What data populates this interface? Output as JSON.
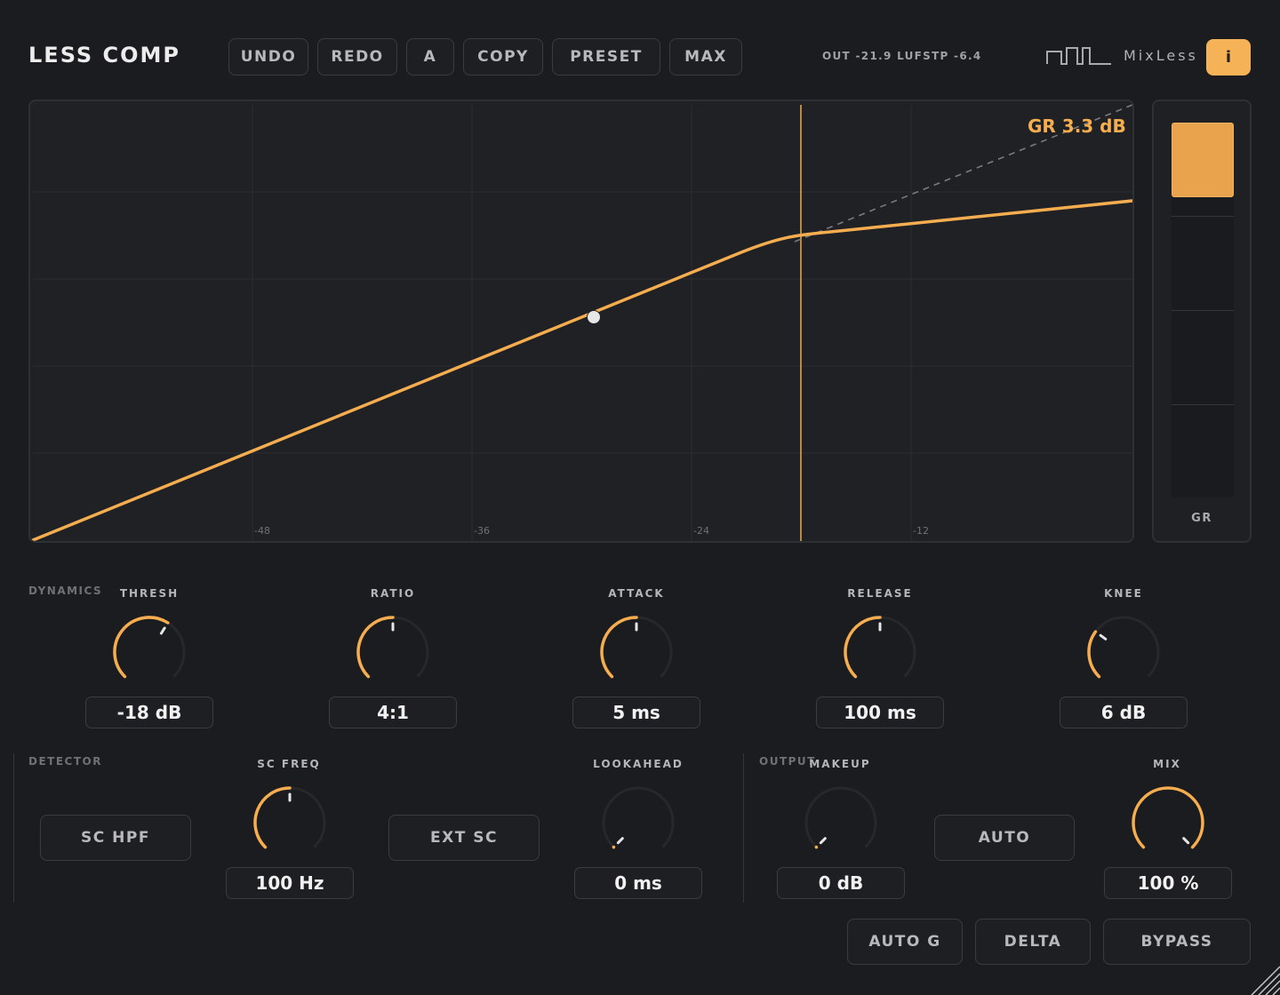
{
  "app": {
    "title": "LESS COMP"
  },
  "toolbar": {
    "undo": "UNDO",
    "redo": "REDO",
    "ab": "A",
    "copy": "COPY",
    "preset": "PRESET",
    "max": "MAX"
  },
  "meters": {
    "out": "OUT -21.9 LUFS",
    "tp": "TP -6.4"
  },
  "brand": {
    "name": "MixLess",
    "info": "i"
  },
  "graph": {
    "gr_readout": "GR  3.3 dB",
    "x_ticks": [
      "-48",
      "-36",
      "-24",
      "-12"
    ],
    "curve_color": "#f5ad4f"
  },
  "gr_meter": {
    "label": "GR",
    "fill_fraction": 0.2
  },
  "dynamics": {
    "section": "DYNAMICS",
    "thresh": {
      "label": "THRESH",
      "value": "-18 dB",
      "fraction": 0.62
    },
    "ratio": {
      "label": "RATIO",
      "value": "4:1",
      "fraction": 0.5
    },
    "attack": {
      "label": "ATTACK",
      "value": "5 ms",
      "fraction": 0.5
    },
    "release": {
      "label": "RELEASE",
      "value": "100 ms",
      "fraction": 0.5
    },
    "knee": {
      "label": "KNEE",
      "value": "6 dB",
      "fraction": 0.3
    }
  },
  "detector": {
    "section": "DETECTOR",
    "sc_hpf": "SC HPF",
    "sc_freq": {
      "label": "SC FREQ",
      "value": "100 Hz",
      "fraction": 0.5
    },
    "ext_sc": "EXT SC",
    "lookahead": {
      "label": "LOOKAHEAD",
      "value": "0 ms",
      "fraction": 0.0
    }
  },
  "output": {
    "section": "OUTPUT",
    "makeup": {
      "label": "MAKEUP",
      "value": "0 dB",
      "fraction": 0.0
    },
    "auto": "AUTO",
    "mix": {
      "label": "MIX",
      "value": "100 %",
      "fraction": 1.0
    }
  },
  "footer": {
    "auto_g": "AUTO G",
    "delta": "DELTA",
    "bypass": "BYPASS"
  },
  "colors": {
    "accent": "#f5ad4f",
    "background": "#1b1c1f",
    "panel": "#1f2124"
  }
}
